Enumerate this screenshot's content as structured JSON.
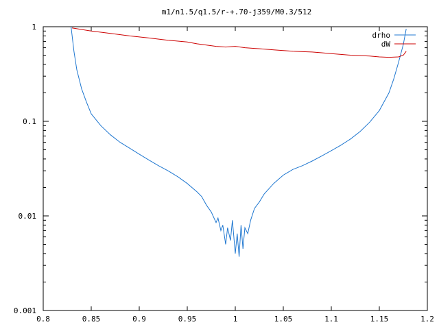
{
  "chart_data": {
    "type": "line",
    "title": "m1/n1.5/q1.5/r-+.70-j359/M0.3/512",
    "xlabel": "",
    "ylabel": "",
    "xlim": [
      0.8,
      1.2
    ],
    "ylim": [
      0.001,
      1
    ],
    "yscale": "log",
    "grid": false,
    "legend_position": "top-right",
    "x_ticks": [
      {
        "value": 0.8,
        "label": "0.8"
      },
      {
        "value": 0.85,
        "label": "0.85"
      },
      {
        "value": 0.9,
        "label": "0.9"
      },
      {
        "value": 0.95,
        "label": "0.95"
      },
      {
        "value": 1.0,
        "label": "1"
      },
      {
        "value": 1.05,
        "label": "1.05"
      },
      {
        "value": 1.1,
        "label": "1.1"
      },
      {
        "value": 1.15,
        "label": "1.15"
      },
      {
        "value": 1.2,
        "label": "1.2"
      }
    ],
    "y_ticks": [
      {
        "value": 1,
        "label": "1"
      },
      {
        "value": 0.1,
        "label": "0.1"
      },
      {
        "value": 0.01,
        "label": "0.01"
      },
      {
        "value": 0.001,
        "label": "0.001"
      }
    ],
    "series": [
      {
        "name": "drho",
        "color": "#1f77d0",
        "x": [
          0.829,
          0.832,
          0.835,
          0.84,
          0.845,
          0.85,
          0.86,
          0.87,
          0.88,
          0.89,
          0.9,
          0.91,
          0.92,
          0.93,
          0.94,
          0.95,
          0.96,
          0.965,
          0.97,
          0.975,
          0.98,
          0.982,
          0.985,
          0.987,
          0.99,
          0.992,
          0.995,
          0.997,
          1.0,
          1.002,
          1.004,
          1.006,
          1.008,
          1.01,
          1.013,
          1.016,
          1.02,
          1.025,
          1.03,
          1.04,
          1.05,
          1.06,
          1.07,
          1.08,
          1.09,
          1.1,
          1.11,
          1.12,
          1.13,
          1.14,
          1.15,
          1.16,
          1.165,
          1.17,
          1.175,
          1.178
        ],
        "y": [
          1.0,
          0.55,
          0.35,
          0.22,
          0.16,
          0.12,
          0.09,
          0.072,
          0.06,
          0.052,
          0.045,
          0.039,
          0.034,
          0.03,
          0.026,
          0.022,
          0.018,
          0.016,
          0.013,
          0.011,
          0.0085,
          0.0095,
          0.007,
          0.008,
          0.005,
          0.0075,
          0.0055,
          0.009,
          0.004,
          0.0065,
          0.0037,
          0.008,
          0.0045,
          0.0075,
          0.0065,
          0.009,
          0.012,
          0.014,
          0.017,
          0.022,
          0.027,
          0.031,
          0.034,
          0.038,
          0.043,
          0.049,
          0.056,
          0.065,
          0.078,
          0.098,
          0.13,
          0.2,
          0.28,
          0.42,
          0.65,
          0.95
        ]
      },
      {
        "name": "dW",
        "color": "#cc0000",
        "x": [
          0.83,
          0.85,
          0.87,
          0.89,
          0.91,
          0.93,
          0.95,
          0.96,
          0.97,
          0.98,
          0.99,
          1.0,
          1.01,
          1.02,
          1.03,
          1.04,
          1.05,
          1.06,
          1.07,
          1.08,
          1.09,
          1.1,
          1.11,
          1.12,
          1.13,
          1.14,
          1.15,
          1.16,
          1.17,
          1.175,
          1.178
        ],
        "y": [
          0.97,
          0.9,
          0.85,
          0.8,
          0.76,
          0.72,
          0.69,
          0.66,
          0.64,
          0.62,
          0.61,
          0.62,
          0.6,
          0.59,
          0.58,
          0.57,
          0.56,
          0.55,
          0.545,
          0.54,
          0.53,
          0.52,
          0.51,
          0.5,
          0.495,
          0.49,
          0.48,
          0.475,
          0.48,
          0.5,
          0.55
        ]
      }
    ]
  }
}
